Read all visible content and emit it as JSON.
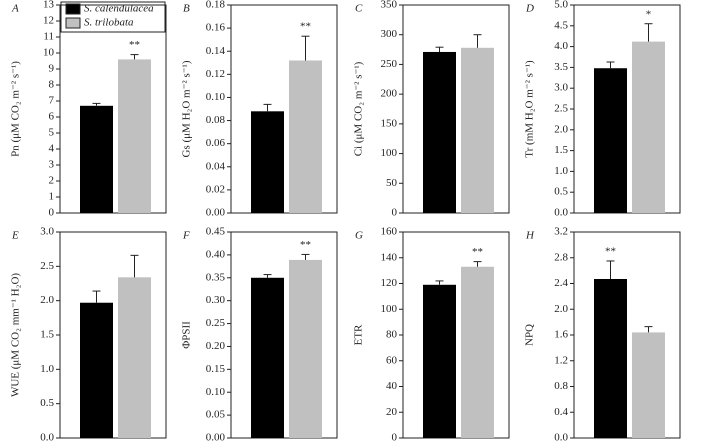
{
  "chart_data": [
    {
      "type": "bar",
      "panel": "A",
      "ylabel": "Pn (μM CO₂ m⁻² s⁻¹)",
      "annotation": "**",
      "legend": "upper left",
      "series": [
        {
          "name": "S. calendulacea",
          "color": "#000000",
          "values": [
            6.7
          ],
          "errors": [
            0.15
          ]
        },
        {
          "name": "S. trilobata",
          "color": "#c0c0c0",
          "values": [
            9.6
          ],
          "errors": [
            0.3
          ]
        }
      ],
      "ylim": [
        0,
        13
      ],
      "yticks": [
        0,
        1,
        2,
        3,
        4,
        5,
        6,
        7,
        8,
        9,
        10,
        11,
        12,
        13
      ]
    },
    {
      "type": "bar",
      "panel": "B",
      "ylabel": "Gs (μM H₂O m⁻² s⁻¹)",
      "annotation": "**",
      "series": [
        {
          "color": "#000000",
          "values": [
            0.088
          ],
          "errors": [
            0.006
          ]
        },
        {
          "color": "#c0c0c0",
          "values": [
            0.132
          ],
          "errors": [
            0.021
          ]
        }
      ],
      "ylim": [
        0,
        0.18
      ],
      "yticks": [
        {
          "value": 0,
          "label": "0.00"
        },
        0.02,
        0.04,
        0.06,
        0.08,
        {
          "value": 0.1,
          "label": "0.10"
        },
        0.12,
        0.14,
        0.16,
        0.18
      ]
    },
    {
      "type": "bar",
      "panel": "C",
      "ylabel": "Ci (μM CO₂ m⁻² s⁻¹)",
      "series": [
        {
          "color": "#000000",
          "values": [
            271
          ],
          "errors": [
            8
          ]
        },
        {
          "color": "#c0c0c0",
          "values": [
            278
          ],
          "errors": [
            22
          ]
        }
      ],
      "ylim": [
        0,
        350
      ],
      "yticks": [
        0,
        50,
        100,
        150,
        200,
        250,
        300,
        350
      ]
    },
    {
      "type": "bar",
      "panel": "D",
      "ylabel": "Tr (mM H₂O m⁻² s⁻¹)",
      "annotation": "*",
      "series": [
        {
          "color": "#000000",
          "values": [
            3.48
          ],
          "errors": [
            0.15
          ]
        },
        {
          "color": "#c0c0c0",
          "values": [
            4.12
          ],
          "errors": [
            0.43
          ]
        }
      ],
      "ylim": [
        0,
        5
      ],
      "yticks": [
        {
          "value": 0,
          "label": "0.0"
        },
        0.5,
        {
          "value": 1,
          "label": "1.0"
        },
        1.5,
        {
          "value": 2,
          "label": "2.0"
        },
        2.5,
        {
          "value": 3,
          "label": "3.0"
        },
        3.5,
        {
          "value": 4,
          "label": "4.0"
        },
        4.5,
        {
          "value": 5,
          "label": "5.0"
        }
      ]
    },
    {
      "type": "bar",
      "panel": "E",
      "ylabel": "WUE (μM CO₂ mm⁻¹ H₂O)",
      "series": [
        {
          "color": "#000000",
          "values": [
            1.97
          ],
          "errors": [
            0.17
          ]
        },
        {
          "color": "#c0c0c0",
          "values": [
            2.34
          ],
          "errors": [
            0.32
          ]
        }
      ],
      "ylim": [
        0,
        3
      ],
      "yticks": [
        {
          "value": 0,
          "label": "0.0"
        },
        0.5,
        {
          "value": 1,
          "label": "1.0"
        },
        1.5,
        {
          "value": 2,
          "label": "2.0"
        },
        2.5,
        {
          "value": 3,
          "label": "3.0"
        }
      ]
    },
    {
      "type": "bar",
      "panel": "F",
      "ylabel": "ΦPSII",
      "annotation": "**",
      "series": [
        {
          "color": "#000000",
          "values": [
            0.35
          ],
          "errors": [
            0.007
          ]
        },
        {
          "color": "#c0c0c0",
          "values": [
            0.389
          ],
          "errors": [
            0.012
          ]
        }
      ],
      "ylim": [
        0,
        0.45
      ],
      "yticks": [
        {
          "value": 0,
          "label": "0.00"
        },
        0.05,
        {
          "value": 0.1,
          "label": "0.10"
        },
        0.15,
        {
          "value": 0.2,
          "label": "0.20"
        },
        0.25,
        {
          "value": 0.3,
          "label": "0.30"
        },
        0.35,
        {
          "value": 0.4,
          "label": "0.40"
        },
        0.45
      ]
    },
    {
      "type": "bar",
      "panel": "G",
      "ylabel": "ETR",
      "annotation": "**",
      "series": [
        {
          "color": "#000000",
          "values": [
            119
          ],
          "errors": [
            3
          ]
        },
        {
          "color": "#c0c0c0",
          "values": [
            133
          ],
          "errors": [
            4
          ]
        }
      ],
      "ylim": [
        0,
        160
      ],
      "yticks": [
        0,
        20,
        40,
        60,
        80,
        100,
        120,
        140,
        160
      ]
    },
    {
      "type": "bar",
      "panel": "H",
      "ylabel": "NPQ",
      "annotation": "**",
      "series": [
        {
          "color": "#000000",
          "values": [
            2.47
          ],
          "errors": [
            0.28
          ]
        },
        {
          "color": "#c0c0c0",
          "values": [
            1.64
          ],
          "errors": [
            0.09
          ]
        }
      ],
      "ylim": [
        0,
        3.2
      ],
      "yticks": [
        {
          "value": 0,
          "label": "0.0"
        },
        0.4,
        0.8,
        1.2,
        1.6,
        {
          "value": 2,
          "label": "2.0"
        },
        2.4,
        2.8,
        3.2
      ]
    }
  ]
}
